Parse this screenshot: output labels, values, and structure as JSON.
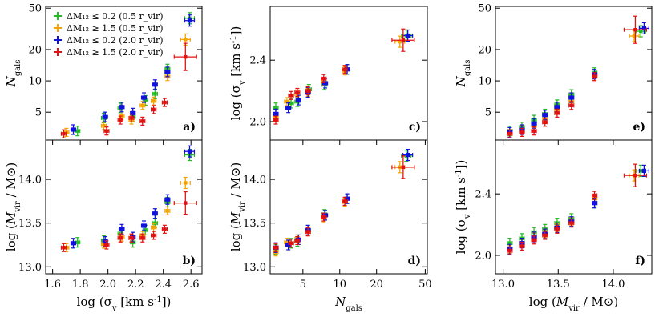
{
  "colors": {
    "green": "#22bb22",
    "orange": "#f5a300",
    "blue": "#1111dd",
    "red": "#e21111"
  },
  "legend": [
    {
      "series": "green",
      "label": "ΔM₁₂ ≤ 0.2 (0.5 r_vir)"
    },
    {
      "series": "orange",
      "label": "ΔM₁₂ ≥ 1.5 (0.5 r_vir)"
    },
    {
      "series": "blue",
      "label": "ΔM₁₂ ≤ 0.2 (2.0 r_vir)"
    },
    {
      "series": "red",
      "label": "ΔM₁₂ ≥ 1.5 (2.0 r_vir)"
    }
  ],
  "chart_data": [
    {
      "panel": "a",
      "type": "scatter",
      "xlabel": "",
      "ylabel": "N_gals",
      "xlim": [
        1.55,
        2.68
      ],
      "ylim": [
        2.7,
        52
      ],
      "xscale": "linear",
      "yscale": "log",
      "xticks": [],
      "yticks": [
        5,
        10,
        20,
        50
      ],
      "series": {
        "green": [
          [
            1.78,
            3.3
          ],
          [
            1.97,
            4.4
          ],
          [
            2.09,
            5.5
          ],
          [
            2.18,
            4.5
          ],
          [
            2.27,
            6.5
          ],
          [
            2.34,
            7.5
          ],
          [
            2.43,
            13
          ],
          [
            2.59,
            40
          ]
        ],
        "orange": [
          [
            1.7,
            3.2
          ],
          [
            1.97,
            3.7
          ],
          [
            2.1,
            4.6
          ],
          [
            2.17,
            4.2
          ],
          [
            2.25,
            5.8
          ],
          [
            2.33,
            6.4
          ],
          [
            2.43,
            11
          ],
          [
            2.56,
            25
          ]
        ],
        "blue": [
          [
            1.75,
            3.4
          ],
          [
            1.98,
            4.5
          ],
          [
            2.1,
            5.6
          ],
          [
            2.18,
            4.9
          ],
          [
            2.26,
            6.9
          ],
          [
            2.34,
            9.2
          ],
          [
            2.43,
            12.2
          ],
          [
            2.59,
            38
          ]
        ],
        "red": [
          [
            1.68,
            3.1
          ],
          [
            1.99,
            3.3
          ],
          [
            2.09,
            4.2
          ],
          [
            2.17,
            4.4
          ],
          [
            2.25,
            4.1
          ],
          [
            2.33,
            5.3
          ],
          [
            2.41,
            6.2
          ],
          [
            2.56,
            17
          ]
        ]
      }
    },
    {
      "panel": "b",
      "type": "scatter",
      "xlabel": "log (σ_v [km s^-1])",
      "ylabel": "log (M_vir / M⊙)",
      "xlim": [
        1.55,
        2.68
      ],
      "ylim": [
        12.92,
        14.45
      ],
      "xscale": "linear",
      "yscale": "linear",
      "xticks": [
        1.6,
        1.8,
        2.0,
        2.2,
        2.4,
        2.6
      ],
      "yticks": [
        13.0,
        13.5,
        14.0
      ],
      "series": {
        "green": [
          [
            1.78,
            13.28
          ],
          [
            1.97,
            13.3
          ],
          [
            2.09,
            13.38
          ],
          [
            2.18,
            13.28
          ],
          [
            2.27,
            13.42
          ],
          [
            2.34,
            13.5
          ],
          [
            2.43,
            13.74
          ],
          [
            2.59,
            14.28
          ]
        ],
        "orange": [
          [
            1.7,
            13.22
          ],
          [
            1.97,
            13.26
          ],
          [
            2.1,
            13.34
          ],
          [
            2.17,
            13.33
          ],
          [
            2.25,
            13.36
          ],
          [
            2.33,
            13.45
          ],
          [
            2.43,
            13.64
          ],
          [
            2.56,
            13.96
          ]
        ],
        "blue": [
          [
            1.75,
            13.27
          ],
          [
            1.98,
            13.29
          ],
          [
            2.1,
            13.43
          ],
          [
            2.18,
            13.34
          ],
          [
            2.26,
            13.47
          ],
          [
            2.34,
            13.61
          ],
          [
            2.43,
            13.77
          ],
          [
            2.59,
            14.32
          ]
        ],
        "red": [
          [
            1.68,
            13.22
          ],
          [
            1.99,
            13.25
          ],
          [
            2.09,
            13.33
          ],
          [
            2.17,
            13.33
          ],
          [
            2.25,
            13.33
          ],
          [
            2.33,
            13.36
          ],
          [
            2.41,
            13.43
          ],
          [
            2.56,
            13.73
          ]
        ]
      }
    },
    {
      "panel": "c",
      "type": "scatter",
      "xlabel": "",
      "ylabel": "log (σ_v [km s^-1])",
      "xlim": [
        2.7,
        52
      ],
      "ylim": [
        1.88,
        2.75
      ],
      "xscale": "log",
      "yscale": "linear",
      "xticks": [],
      "yticks": [
        2.0,
        2.4
      ],
      "series": {
        "green": [
          [
            3,
            2.09
          ],
          [
            4,
            2.12
          ],
          [
            4.5,
            2.13
          ],
          [
            5.6,
            2.21
          ],
          [
            7.5,
            2.24
          ],
          [
            11.5,
            2.34
          ],
          [
            35,
            2.56
          ]
        ],
        "orange": [
          [
            3,
            2.03
          ],
          [
            3.7,
            2.13
          ],
          [
            4.5,
            2.18
          ],
          [
            5.5,
            2.19
          ],
          [
            7.4,
            2.26
          ],
          [
            11,
            2.33
          ],
          [
            31,
            2.52
          ]
        ],
        "blue": [
          [
            3,
            2.05
          ],
          [
            3.8,
            2.09
          ],
          [
            4.6,
            2.14
          ],
          [
            5.5,
            2.19
          ],
          [
            7.6,
            2.25
          ],
          [
            11.5,
            2.34
          ],
          [
            36,
            2.56
          ]
        ],
        "red": [
          [
            3,
            2.01
          ],
          [
            4,
            2.17
          ],
          [
            4.5,
            2.19
          ],
          [
            5.5,
            2.2
          ],
          [
            7.4,
            2.28
          ],
          [
            11,
            2.34
          ],
          [
            33,
            2.53
          ]
        ]
      }
    },
    {
      "panel": "d",
      "type": "scatter",
      "xlabel": "N_gals",
      "ylabel": "log (M_vir / M⊙)",
      "xlim": [
        2.7,
        52
      ],
      "ylim": [
        12.92,
        14.45
      ],
      "xscale": "log",
      "yscale": "linear",
      "xticks": [
        5,
        10,
        20,
        50
      ],
      "yticks": [
        13.0,
        13.5,
        14.0
      ],
      "series": {
        "green": [
          [
            3,
            13.2
          ],
          [
            4,
            13.27
          ],
          [
            4.5,
            13.29
          ],
          [
            5.5,
            13.42
          ],
          [
            7.5,
            13.6
          ],
          [
            11.5,
            13.78
          ],
          [
            35,
            14.27
          ]
        ],
        "orange": [
          [
            3,
            13.17
          ],
          [
            3.7,
            13.28
          ],
          [
            4.5,
            13.32
          ],
          [
            5.5,
            13.4
          ],
          [
            7.4,
            13.56
          ],
          [
            11,
            13.74
          ],
          [
            31,
            14.14
          ]
        ],
        "blue": [
          [
            3,
            13.22
          ],
          [
            3.8,
            13.25
          ],
          [
            4.6,
            13.31
          ],
          [
            5.5,
            13.42
          ],
          [
            7.6,
            13.59
          ],
          [
            11.5,
            13.78
          ],
          [
            36,
            14.28
          ]
        ],
        "red": [
          [
            3,
            13.22
          ],
          [
            4,
            13.27
          ],
          [
            4.5,
            13.3
          ],
          [
            5.5,
            13.4
          ],
          [
            7.4,
            13.57
          ],
          [
            11,
            13.75
          ],
          [
            33,
            14.14
          ]
        ]
      }
    },
    {
      "panel": "e",
      "type": "scatter",
      "xlabel": "",
      "ylabel": "N_gals",
      "xlim": [
        12.93,
        14.35
      ],
      "ylim": [
        2.7,
        52
      ],
      "xscale": "linear",
      "yscale": "log",
      "xticks": [],
      "yticks": [
        5,
        10,
        20,
        50
      ],
      "series": {
        "green": [
          [
            13.06,
            3.3
          ],
          [
            13.17,
            3.6
          ],
          [
            13.28,
            4.2
          ],
          [
            13.38,
            4.8
          ],
          [
            13.49,
            5.9
          ],
          [
            13.62,
            7.4
          ],
          [
            13.83,
            12
          ],
          [
            14.25,
            30
          ]
        ],
        "orange": [
          [
            13.06,
            3.1
          ],
          [
            13.17,
            3.4
          ],
          [
            13.28,
            3.7
          ],
          [
            13.38,
            4.3
          ],
          [
            13.49,
            5.3
          ],
          [
            13.62,
            6.3
          ],
          [
            13.83,
            11
          ],
          [
            14.19,
            27
          ]
        ],
        "blue": [
          [
            13.06,
            3.2
          ],
          [
            13.17,
            3.4
          ],
          [
            13.28,
            3.9
          ],
          [
            13.38,
            4.7
          ],
          [
            13.49,
            5.6
          ],
          [
            13.62,
            6.9
          ],
          [
            13.83,
            11.6
          ],
          [
            14.28,
            32
          ]
        ],
        "red": [
          [
            13.06,
            3.1
          ],
          [
            13.17,
            3.2
          ],
          [
            13.28,
            3.3
          ],
          [
            13.38,
            4.0
          ],
          [
            13.49,
            4.9
          ],
          [
            13.62,
            5.8
          ],
          [
            13.83,
            11
          ],
          [
            14.2,
            31
          ]
        ]
      }
    },
    {
      "panel": "f",
      "type": "scatter",
      "xlabel": "log (M_vir / M⊙)",
      "ylabel": "log (σ_v [km s^-1])",
      "xlim": [
        12.93,
        14.35
      ],
      "ylim": [
        1.88,
        2.75
      ],
      "xscale": "linear",
      "yscale": "linear",
      "xticks": [
        13.0,
        13.5,
        14.0
      ],
      "yticks": [
        2.0,
        2.4
      ],
      "series": {
        "green": [
          [
            13.06,
            2.08
          ],
          [
            13.17,
            2.11
          ],
          [
            13.28,
            2.15
          ],
          [
            13.38,
            2.17
          ],
          [
            13.49,
            2.21
          ],
          [
            13.62,
            2.24
          ],
          [
            13.83,
            2.34
          ],
          [
            14.25,
            2.55
          ]
        ],
        "orange": [
          [
            13.06,
            2.04
          ],
          [
            13.17,
            2.08
          ],
          [
            13.28,
            2.12
          ],
          [
            13.38,
            2.14
          ],
          [
            13.49,
            2.18
          ],
          [
            13.62,
            2.22
          ],
          [
            13.83,
            2.37
          ],
          [
            14.19,
            2.52
          ]
        ],
        "blue": [
          [
            13.06,
            2.04
          ],
          [
            13.17,
            2.08
          ],
          [
            13.28,
            2.12
          ],
          [
            13.38,
            2.14
          ],
          [
            13.49,
            2.18
          ],
          [
            13.62,
            2.22
          ],
          [
            13.83,
            2.34
          ],
          [
            14.28,
            2.55
          ]
        ],
        "red": [
          [
            13.06,
            2.03
          ],
          [
            13.17,
            2.06
          ],
          [
            13.28,
            2.1
          ],
          [
            13.38,
            2.13
          ],
          [
            13.49,
            2.17
          ],
          [
            13.62,
            2.21
          ],
          [
            13.83,
            2.39
          ],
          [
            14.2,
            2.52
          ]
        ]
      }
    }
  ]
}
